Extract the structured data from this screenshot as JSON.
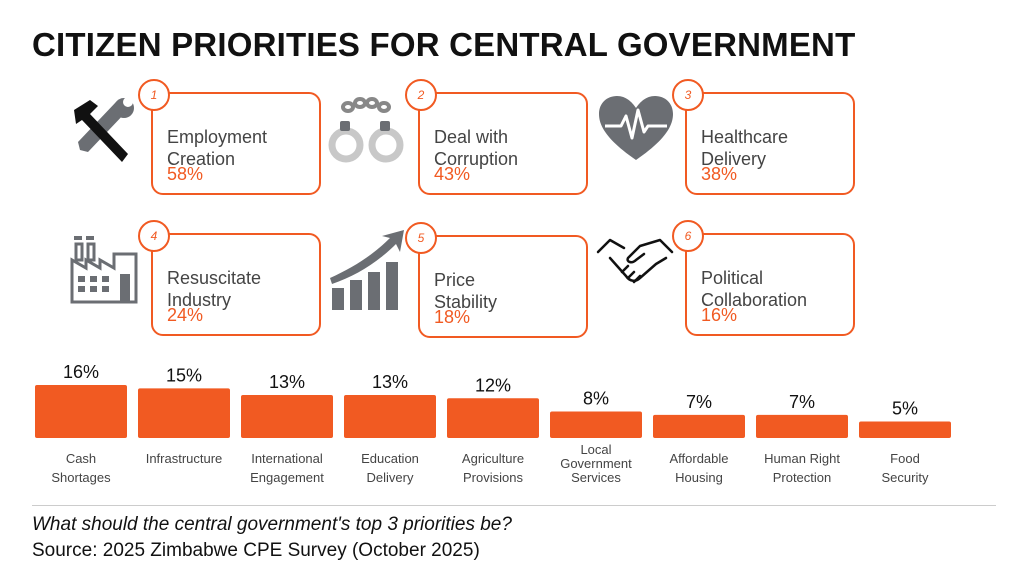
{
  "title": "CITIZEN PRIORITIES FOR CENTRAL GOVERNMENT",
  "colors": {
    "accent": "#f15a22",
    "icon_gray": "#6b6e73"
  },
  "top_priorities": [
    {
      "rank": "1",
      "label": "Employment\nCreation",
      "value": "58%",
      "icon": "tools-icon"
    },
    {
      "rank": "2",
      "label": "Deal with\nCorruption",
      "value": "43%",
      "icon": "handcuffs-icon"
    },
    {
      "rank": "3",
      "label": "Healthcare\nDelivery",
      "value": "38%",
      "icon": "heartbeat-icon"
    },
    {
      "rank": "4",
      "label": "Resuscitate\nIndustry",
      "value": "24%",
      "icon": "factory-icon"
    },
    {
      "rank": "5",
      "label": "Price\nStability",
      "value": "18%",
      "icon": "growth-chart-icon"
    },
    {
      "rank": "6",
      "label": "Political\nCollaboration",
      "value": "16%",
      "icon": "handshake-icon"
    }
  ],
  "chart_data": {
    "type": "bar",
    "title": "",
    "xlabel": "",
    "ylabel": "",
    "ylim": [
      0,
      16
    ],
    "categories": [
      "Cash\nShortages",
      "Infrastructure",
      "International\nEngagement",
      "Education\nDelivery",
      "Agriculture\nProvisions",
      "Local\nGovernment\nServices",
      "Affordable\nHousing",
      "Human Right\nProtection",
      "Food\nSecurity"
    ],
    "values": [
      16,
      15,
      13,
      13,
      12,
      8,
      7,
      7,
      5
    ],
    "value_labels": [
      "16%",
      "15%",
      "13%",
      "13%",
      "12%",
      "8%",
      "7%",
      "7%",
      "5%"
    ]
  },
  "footer": {
    "question": "What should the central government's top 3 priorities be?",
    "source": "Source: 2025 Zimbabwe CPE Survey (October 2025)"
  }
}
